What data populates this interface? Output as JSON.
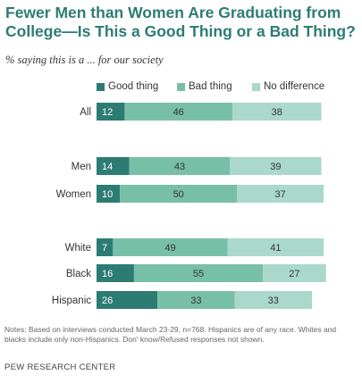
{
  "title": "Fewer Men than Women Are Graduating from College—Is This a Good Thing or a Bad Thing?",
  "subtitle": "% saying this is a ... for our society",
  "notes": "Notes: Based on interviews conducted March 23-29, n=768. Hispanics are of any race. Whites and blacks include only non-Hispanics. Don' know/Refused responses not shown.",
  "source": "PEW RESEARCH CENTER",
  "colors": {
    "good": "#2d7c74",
    "bad": "#78bfa7",
    "nodiff": "#aad8cb"
  },
  "chart_data": {
    "type": "bar",
    "orientation": "horizontal",
    "stacked": true,
    "title": "Fewer Men than Women Are Graduating from College—Is This a Good Thing or a Bad Thing?",
    "subtitle": "% saying this is a ... for our society",
    "categories": [
      "All",
      "Men",
      "Women",
      "White",
      "Black",
      "Hispanic"
    ],
    "groups": [
      [
        "All"
      ],
      [
        "Men",
        "Women"
      ],
      [
        "White",
        "Black",
        "Hispanic"
      ]
    ],
    "series": [
      {
        "name": "Good thing",
        "color": "#2d7c74",
        "values": [
          12,
          14,
          10,
          7,
          16,
          26
        ]
      },
      {
        "name": "Bad thing",
        "color": "#78bfa7",
        "values": [
          46,
          43,
          50,
          49,
          55,
          33
        ]
      },
      {
        "name": "No difference",
        "color": "#aad8cb",
        "values": [
          38,
          39,
          37,
          41,
          27,
          33
        ]
      }
    ],
    "legend": "top",
    "grid": false,
    "data_labels": true
  }
}
